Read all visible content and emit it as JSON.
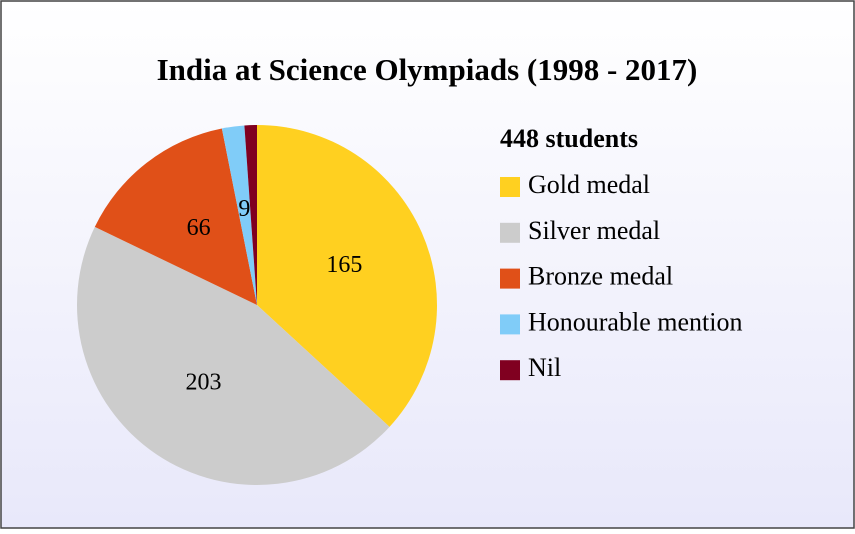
{
  "chart_data": {
    "type": "pie",
    "title": "India at Science Olympiads (1998 - 2017)",
    "legend_title": "448 students",
    "categories": [
      "Gold medal",
      "Silver medal",
      "Bronze medal",
      "Honourable mention",
      "Nil"
    ],
    "values": [
      165,
      203,
      66,
      9,
      5
    ],
    "value_labels": [
      "165",
      "203",
      "66",
      "9",
      null
    ],
    "colors": [
      "#ffd020",
      "#cccccc",
      "#e05018",
      "#80ccf8",
      "#800020"
    ],
    "legend": "right"
  }
}
